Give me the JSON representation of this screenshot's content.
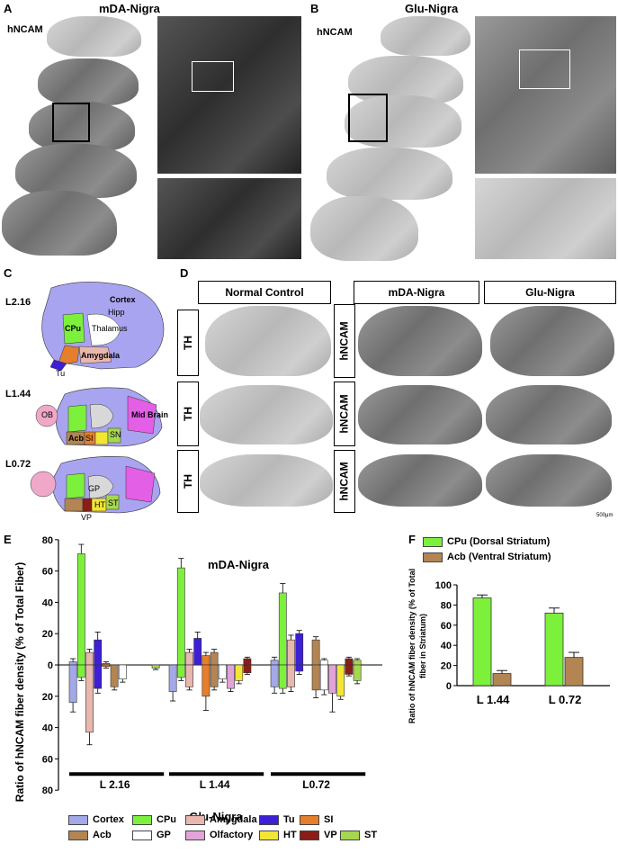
{
  "panels": {
    "A": {
      "letter": "A",
      "title": "mDA-Nigra",
      "stain": "hNCAM"
    },
    "B": {
      "letter": "B",
      "title": "Glu-Nigra",
      "stain": "hNCAM"
    },
    "C": {
      "letter": "C",
      "levels": [
        "L2.16",
        "L1.44",
        "L0.72"
      ],
      "regions": [
        "Cortex",
        "CPu",
        "Thalamus",
        "Hipp",
        "Amygdala",
        "OB",
        "Mid Brain",
        "Acb",
        "SI",
        "SN",
        "GP",
        "Tu",
        "HT",
        "VP",
        "ST"
      ]
    },
    "D": {
      "letter": "D",
      "headers": [
        "Normal Control",
        "mDA-Nigra",
        "Glu-Nigra"
      ],
      "th": [
        "TH",
        "TH",
        "TH"
      ],
      "hncam": [
        "hNCAM",
        "hNCAM",
        "hNCAM"
      ],
      "scale": "500μm"
    },
    "E": {
      "letter": "E"
    },
    "F": {
      "letter": "F"
    }
  },
  "chart_data": [
    {
      "type": "bar",
      "title": "mDA-Nigra",
      "bottom_title": "Glu-Nigra",
      "ylabel": "Ratio of hNCAM fiber density (% of Total Fiber)",
      "ylim_top": [
        0,
        80
      ],
      "ylim_bottom": [
        0,
        80
      ],
      "yticks": [
        "80",
        "60",
        "40",
        "20",
        "0",
        "20",
        "40",
        "60",
        "80"
      ],
      "groups": [
        "L 2.16",
        "L 1.44",
        "L0.72"
      ],
      "series": [
        {
          "name": "Cortex",
          "color": "#a3a8e8",
          "top": [
            2,
            0,
            3
          ],
          "top_err": [
            2,
            0,
            2
          ],
          "bottom": [
            24,
            17,
            14
          ],
          "bottom_err": [
            6,
            6,
            4
          ]
        },
        {
          "name": "CPu",
          "color": "#7df03c",
          "top": [
            71,
            62,
            46
          ],
          "top_err": [
            6,
            6,
            6
          ],
          "bottom": [
            8,
            8,
            15
          ],
          "bottom_err": [
            2,
            2,
            3
          ]
        },
        {
          "name": "Amygdala",
          "color": "#e8b7ad",
          "top": [
            8,
            8,
            16
          ],
          "top_err": [
            2,
            2,
            3
          ],
          "bottom": [
            43,
            14,
            14
          ],
          "bottom_err": [
            8,
            2,
            3
          ]
        },
        {
          "name": "Tu",
          "color": "#3d1fd6",
          "top": [
            16,
            17,
            20
          ],
          "top_err": [
            5,
            4,
            2
          ],
          "bottom": [
            15,
            0,
            4
          ],
          "bottom_err": [
            3,
            0,
            2
          ]
        },
        {
          "name": "SI",
          "color": "#e57f2c",
          "top": [
            1,
            6,
            0
          ],
          "top_err": [
            1,
            2,
            0
          ],
          "bottom": [
            1,
            20,
            0
          ],
          "bottom_err": [
            1,
            9,
            0
          ]
        },
        {
          "name": "Acb",
          "color": "#b28553",
          "top": [
            0,
            8,
            16
          ],
          "top_err": [
            0,
            2,
            2
          ],
          "bottom": [
            14,
            14,
            16
          ],
          "bottom_err": [
            2,
            2,
            5
          ]
        },
        {
          "name": "GP",
          "color": "#ffffff",
          "top": [
            0,
            0,
            3
          ],
          "top_err": [
            0,
            0,
            1
          ],
          "bottom": [
            9,
            9,
            16
          ],
          "bottom_err": [
            2,
            2,
            3
          ]
        },
        {
          "name": "Olfactory",
          "color": "#e2a4d8",
          "top": [
            0,
            0,
            0
          ],
          "top_err": [
            0,
            0,
            0
          ],
          "bottom": [
            0,
            15,
            18
          ],
          "bottom_err": [
            0,
            2,
            12
          ]
        },
        {
          "name": "HT",
          "color": "#f3e535",
          "top": [
            0,
            0,
            0
          ],
          "top_err": [
            0,
            0,
            0
          ],
          "bottom": [
            0,
            10,
            20
          ],
          "bottom_err": [
            0,
            2,
            2
          ]
        },
        {
          "name": "VP",
          "color": "#8b1c16",
          "top": [
            0,
            4,
            4
          ],
          "top_err": [
            0,
            1,
            1
          ],
          "bottom": [
            0,
            5,
            6
          ],
          "bottom_err": [
            0,
            1,
            1
          ]
        },
        {
          "name": "ST",
          "color": "#a6d750",
          "top": [
            0,
            0,
            3
          ],
          "top_err": [
            0,
            0,
            1
          ],
          "bottom": [
            2,
            0,
            10
          ],
          "bottom_err": [
            1,
            0,
            2
          ]
        }
      ]
    },
    {
      "type": "bar",
      "title": "",
      "ylabel": "Ratio of hNCAM fiber density (% of Total fiber in Striatum)",
      "ylim": [
        0,
        100
      ],
      "yticks": [
        "0",
        "20",
        "40",
        "60",
        "80",
        "100"
      ],
      "categories": [
        "L 1.44",
        "L 0.72"
      ],
      "series": [
        {
          "name": "CPu (Dorsal Striatum)",
          "color": "#7df03c",
          "values": [
            87,
            72
          ],
          "err": [
            3,
            5
          ]
        },
        {
          "name": "Acb (Ventral Striatum)",
          "color": "#b28553",
          "values": [
            12,
            28
          ],
          "err": [
            3,
            5
          ]
        }
      ]
    }
  ]
}
